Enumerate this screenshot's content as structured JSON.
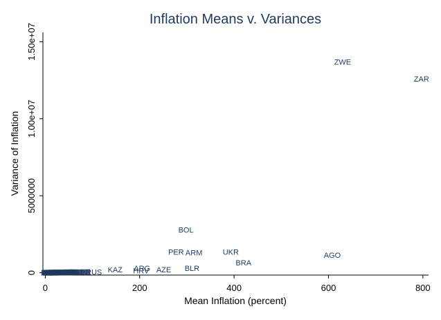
{
  "chart_data": {
    "type": "scatter",
    "title": "Inflation Means v. Variances",
    "xlabel": "Mean Inflation (percent)",
    "ylabel": "Variance of Inflation",
    "xlim": [
      -5,
      812
    ],
    "ylim": [
      -150000,
      15600000
    ],
    "x_ticks": [
      0,
      200,
      400,
      600,
      800
    ],
    "x_tick_labels": [
      "0",
      "200",
      "400",
      "600",
      "800"
    ],
    "y_ticks": [
      0,
      5000000,
      10000000,
      15000000
    ],
    "y_tick_labels": [
      "0",
      "5000000",
      "1.00e+07",
      "1.50e+07"
    ],
    "grid": false,
    "marker": "country-code labels",
    "colors": {
      "labels": "#1e3a5f",
      "axis": "#000000",
      "background": "#ffffff"
    },
    "points": [
      {
        "label": "ZWE",
        "x": 630,
        "y": 13700000
      },
      {
        "label": "ZAR",
        "x": 797,
        "y": 12600000
      },
      {
        "label": "BOL",
        "x": 298,
        "y": 2800000
      },
      {
        "label": "PER",
        "x": 277,
        "y": 1350000
      },
      {
        "label": "ARM",
        "x": 315,
        "y": 1300000
      },
      {
        "label": "UKR",
        "x": 393,
        "y": 1350000
      },
      {
        "label": "AGO",
        "x": 608,
        "y": 1150000
      },
      {
        "label": "BRA",
        "x": 420,
        "y": 650000
      },
      {
        "label": "BLR",
        "x": 311,
        "y": 300000
      },
      {
        "label": "AZE",
        "x": 251,
        "y": 200000
      },
      {
        "label": "ARG",
        "x": 205,
        "y": 300000
      },
      {
        "label": "HRV",
        "x": 203,
        "y": 150000
      },
      {
        "label": "KAZ",
        "x": 148,
        "y": 200000
      },
      {
        "label": "RUS",
        "x": 103,
        "y": 50000
      },
      {
        "label": "TJK",
        "x": 75,
        "y": 60000
      },
      {
        "label": "BGR",
        "x": 63,
        "y": 60000
      },
      {
        "label": "",
        "x": 2,
        "y": 0
      },
      {
        "label": "",
        "x": 5,
        "y": 10000
      },
      {
        "label": "",
        "x": 8,
        "y": 0
      },
      {
        "label": "",
        "x": 11,
        "y": 15000
      },
      {
        "label": "",
        "x": 14,
        "y": 5000
      },
      {
        "label": "",
        "x": 17,
        "y": 20000
      },
      {
        "label": "",
        "x": 20,
        "y": 0
      },
      {
        "label": "",
        "x": 23,
        "y": 10000
      },
      {
        "label": "",
        "x": 26,
        "y": 25000
      },
      {
        "label": "",
        "x": 30,
        "y": 5000
      },
      {
        "label": "",
        "x": 34,
        "y": 15000
      },
      {
        "label": "",
        "x": 38,
        "y": 30000
      },
      {
        "label": "",
        "x": 42,
        "y": 20000
      },
      {
        "label": "",
        "x": 46,
        "y": 10000
      },
      {
        "label": "",
        "x": 50,
        "y": 35000
      },
      {
        "label": "",
        "x": 55,
        "y": 25000
      },
      {
        "label": "",
        "x": 60,
        "y": 40000
      },
      {
        "label": "",
        "x": 68,
        "y": 30000
      },
      {
        "label": "",
        "x": 85,
        "y": 45000
      }
    ]
  }
}
